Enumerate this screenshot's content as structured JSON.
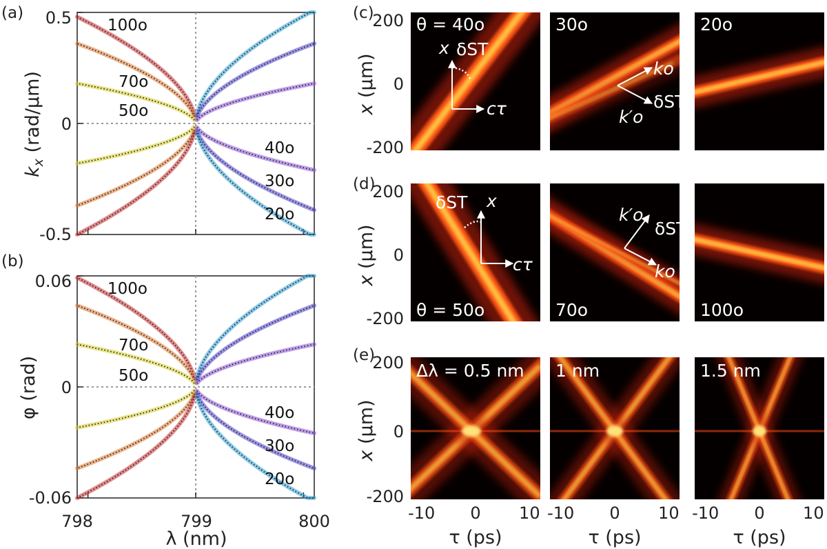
{
  "colors": {
    "c100": "#cc2a2a",
    "c70": "#e0762a",
    "c50": "#d8cf27",
    "c40": "#8a4fd8",
    "c30": "#4b3fcf",
    "c20": "#2a9fd6",
    "dot": "#2b2b33",
    "zero_line": "#9a9a9a"
  },
  "panels_text": {
    "a": "(a)",
    "b": "(b)",
    "c": "(c)",
    "d": "(d)",
    "e": "(e)"
  },
  "chart_data": [
    {
      "id": "a",
      "type": "line",
      "xlabel": "λ (nm)",
      "ylabel_main": "k",
      "ylabel_sub": "x",
      "ylabel_unit": " (rad/µm)",
      "xlim": [
        797.9,
        800.1
      ],
      "ylim": [
        -0.5,
        0.5
      ],
      "yticks": [
        0.5,
        0,
        -0.5
      ],
      "ytick_labels": [
        "0.5",
        "0",
        "-0.5"
      ],
      "xticks": [
        798,
        799,
        800
      ],
      "series": [
        {
          "name": "100°",
          "branch": "upper-left",
          "color_key": "c100",
          "endpoint": 0.48
        },
        {
          "name": "70°",
          "branch": "upper-left",
          "color_key": "c70",
          "endpoint": 0.36
        },
        {
          "name": "50°",
          "branch": "upper-left",
          "color_key": "c50",
          "endpoint": 0.18
        },
        {
          "name": "50°",
          "branch": "lower-left",
          "color_key": "c50",
          "endpoint": -0.18
        },
        {
          "name": "70°",
          "branch": "lower-left",
          "color_key": "c70",
          "endpoint": -0.37
        },
        {
          "name": "100°",
          "branch": "lower-left",
          "color_key": "c100",
          "endpoint": -0.5
        },
        {
          "name": "20°",
          "branch": "upper-right",
          "color_key": "c20",
          "endpoint": 0.51
        },
        {
          "name": "30°",
          "branch": "upper-right",
          "color_key": "c30",
          "endpoint": 0.36
        },
        {
          "name": "40°",
          "branch": "upper-right",
          "color_key": "c40",
          "endpoint": 0.18
        },
        {
          "name": "40°",
          "branch": "lower-right",
          "color_key": "c40",
          "endpoint": -0.21
        },
        {
          "name": "30°",
          "branch": "lower-right",
          "color_key": "c30",
          "endpoint": -0.39
        },
        {
          "name": "20°",
          "branch": "lower-right",
          "color_key": "c20",
          "endpoint": -0.51
        }
      ],
      "curve_labels": [
        "100o",
        "70o",
        "50o",
        "40o",
        "30o",
        "20o"
      ],
      "annotations": [
        "100°",
        "70°",
        "50°",
        "40°",
        "30°",
        "20°"
      ]
    },
    {
      "id": "b",
      "type": "line",
      "xlabel": "λ (nm)",
      "ylabel": "φ (rad)",
      "xlim": [
        797.9,
        800.1
      ],
      "ylim": [
        -0.06,
        0.06
      ],
      "yticks": [
        0.06,
        0,
        -0.06
      ],
      "ytick_labels": [
        "0.06",
        "0",
        "-0.06"
      ],
      "xticks": [
        798,
        799,
        800
      ],
      "series": [
        {
          "name": "100°",
          "branch": "upper-left",
          "color_key": "c100",
          "endpoint": 0.059
        },
        {
          "name": "70°",
          "branch": "upper-left",
          "color_key": "c70",
          "endpoint": 0.044
        },
        {
          "name": "50°",
          "branch": "upper-left",
          "color_key": "c50",
          "endpoint": 0.023
        },
        {
          "name": "50°",
          "branch": "lower-left",
          "color_key": "c50",
          "endpoint": -0.022
        },
        {
          "name": "70°",
          "branch": "lower-left",
          "color_key": "c70",
          "endpoint": -0.044
        },
        {
          "name": "100°",
          "branch": "lower-left",
          "color_key": "c100",
          "endpoint": -0.06
        },
        {
          "name": "20°",
          "branch": "upper-right",
          "color_key": "c20",
          "endpoint": 0.062
        },
        {
          "name": "30°",
          "branch": "upper-right",
          "color_key": "c30",
          "endpoint": 0.044
        },
        {
          "name": "40°",
          "branch": "upper-right",
          "color_key": "c40",
          "endpoint": 0.023
        },
        {
          "name": "40°",
          "branch": "lower-right",
          "color_key": "c40",
          "endpoint": -0.025
        },
        {
          "name": "30°",
          "branch": "lower-right",
          "color_key": "c30",
          "endpoint": -0.044
        },
        {
          "name": "20°",
          "branch": "lower-right",
          "color_key": "c20",
          "endpoint": -0.062
        }
      ],
      "curve_labels": [
        "100o",
        "70o",
        "50o",
        "40o",
        "30o",
        "20o"
      ],
      "annotations": [
        "100°",
        "70°",
        "50°",
        "40°",
        "30°",
        "20°"
      ]
    },
    {
      "id": "c",
      "type": "heatmap",
      "ylabel_main": "x",
      "ylabel_unit": " (µm)",
      "ylim": [
        -200,
        200
      ],
      "ytick_labels": [
        "200",
        "0",
        "-200"
      ],
      "tiles": [
        {
          "label": "θ = 40o",
          "label_readable": "θ = 40°",
          "theta": 40,
          "slope": 1.0
        },
        {
          "label": "30o",
          "label_readable": "30°",
          "theta": 30,
          "slope": 0.55
        },
        {
          "label": "20o",
          "label_readable": "20°",
          "theta": 20,
          "slope": 0.22
        }
      ],
      "inset_text": {
        "x": "x",
        "delta": "δ",
        "delta_sub": "ST",
        "ctau": "cτ",
        "k": "k",
        "k_sub": "o",
        "k_prime": "k′"
      }
    },
    {
      "id": "d",
      "type": "heatmap",
      "ylabel_main": "x",
      "ylabel_unit": " (µm)",
      "ylim": [
        -200,
        200
      ],
      "ytick_labels": [
        "200",
        "0",
        "-200"
      ],
      "tiles": [
        {
          "label": "θ = 50o",
          "label_readable": "θ = 50°",
          "theta": 50,
          "slope": -1.6
        },
        {
          "label": "70o",
          "label_readable": "70°",
          "theta": 70,
          "slope": -0.5
        },
        {
          "label": "100o",
          "label_readable": "100°",
          "theta": 100,
          "slope": -0.2
        }
      ],
      "inset_text": {
        "x": "x",
        "delta": "δ",
        "delta_sub": "ST",
        "ctau": "cτ",
        "k": "k",
        "k_sub": "o",
        "k_prime": "k′"
      }
    },
    {
      "id": "e",
      "type": "heatmap",
      "ylabel_main": "x",
      "ylabel_unit": " (µm)",
      "xlabel": "τ (ps)",
      "ylim": [
        -200,
        200
      ],
      "xlim": [
        -12,
        12
      ],
      "ytick_labels": [
        "200",
        "0",
        "-200"
      ],
      "xtick_labels": [
        "-10",
        "0",
        "10"
      ],
      "tiles": [
        {
          "label": "Δλ = 0.5 nm",
          "dlambda": 0.5
        },
        {
          "label": "1 nm",
          "dlambda": 1
        },
        {
          "label": "1.5 nm",
          "dlambda": 1.5
        }
      ]
    }
  ]
}
